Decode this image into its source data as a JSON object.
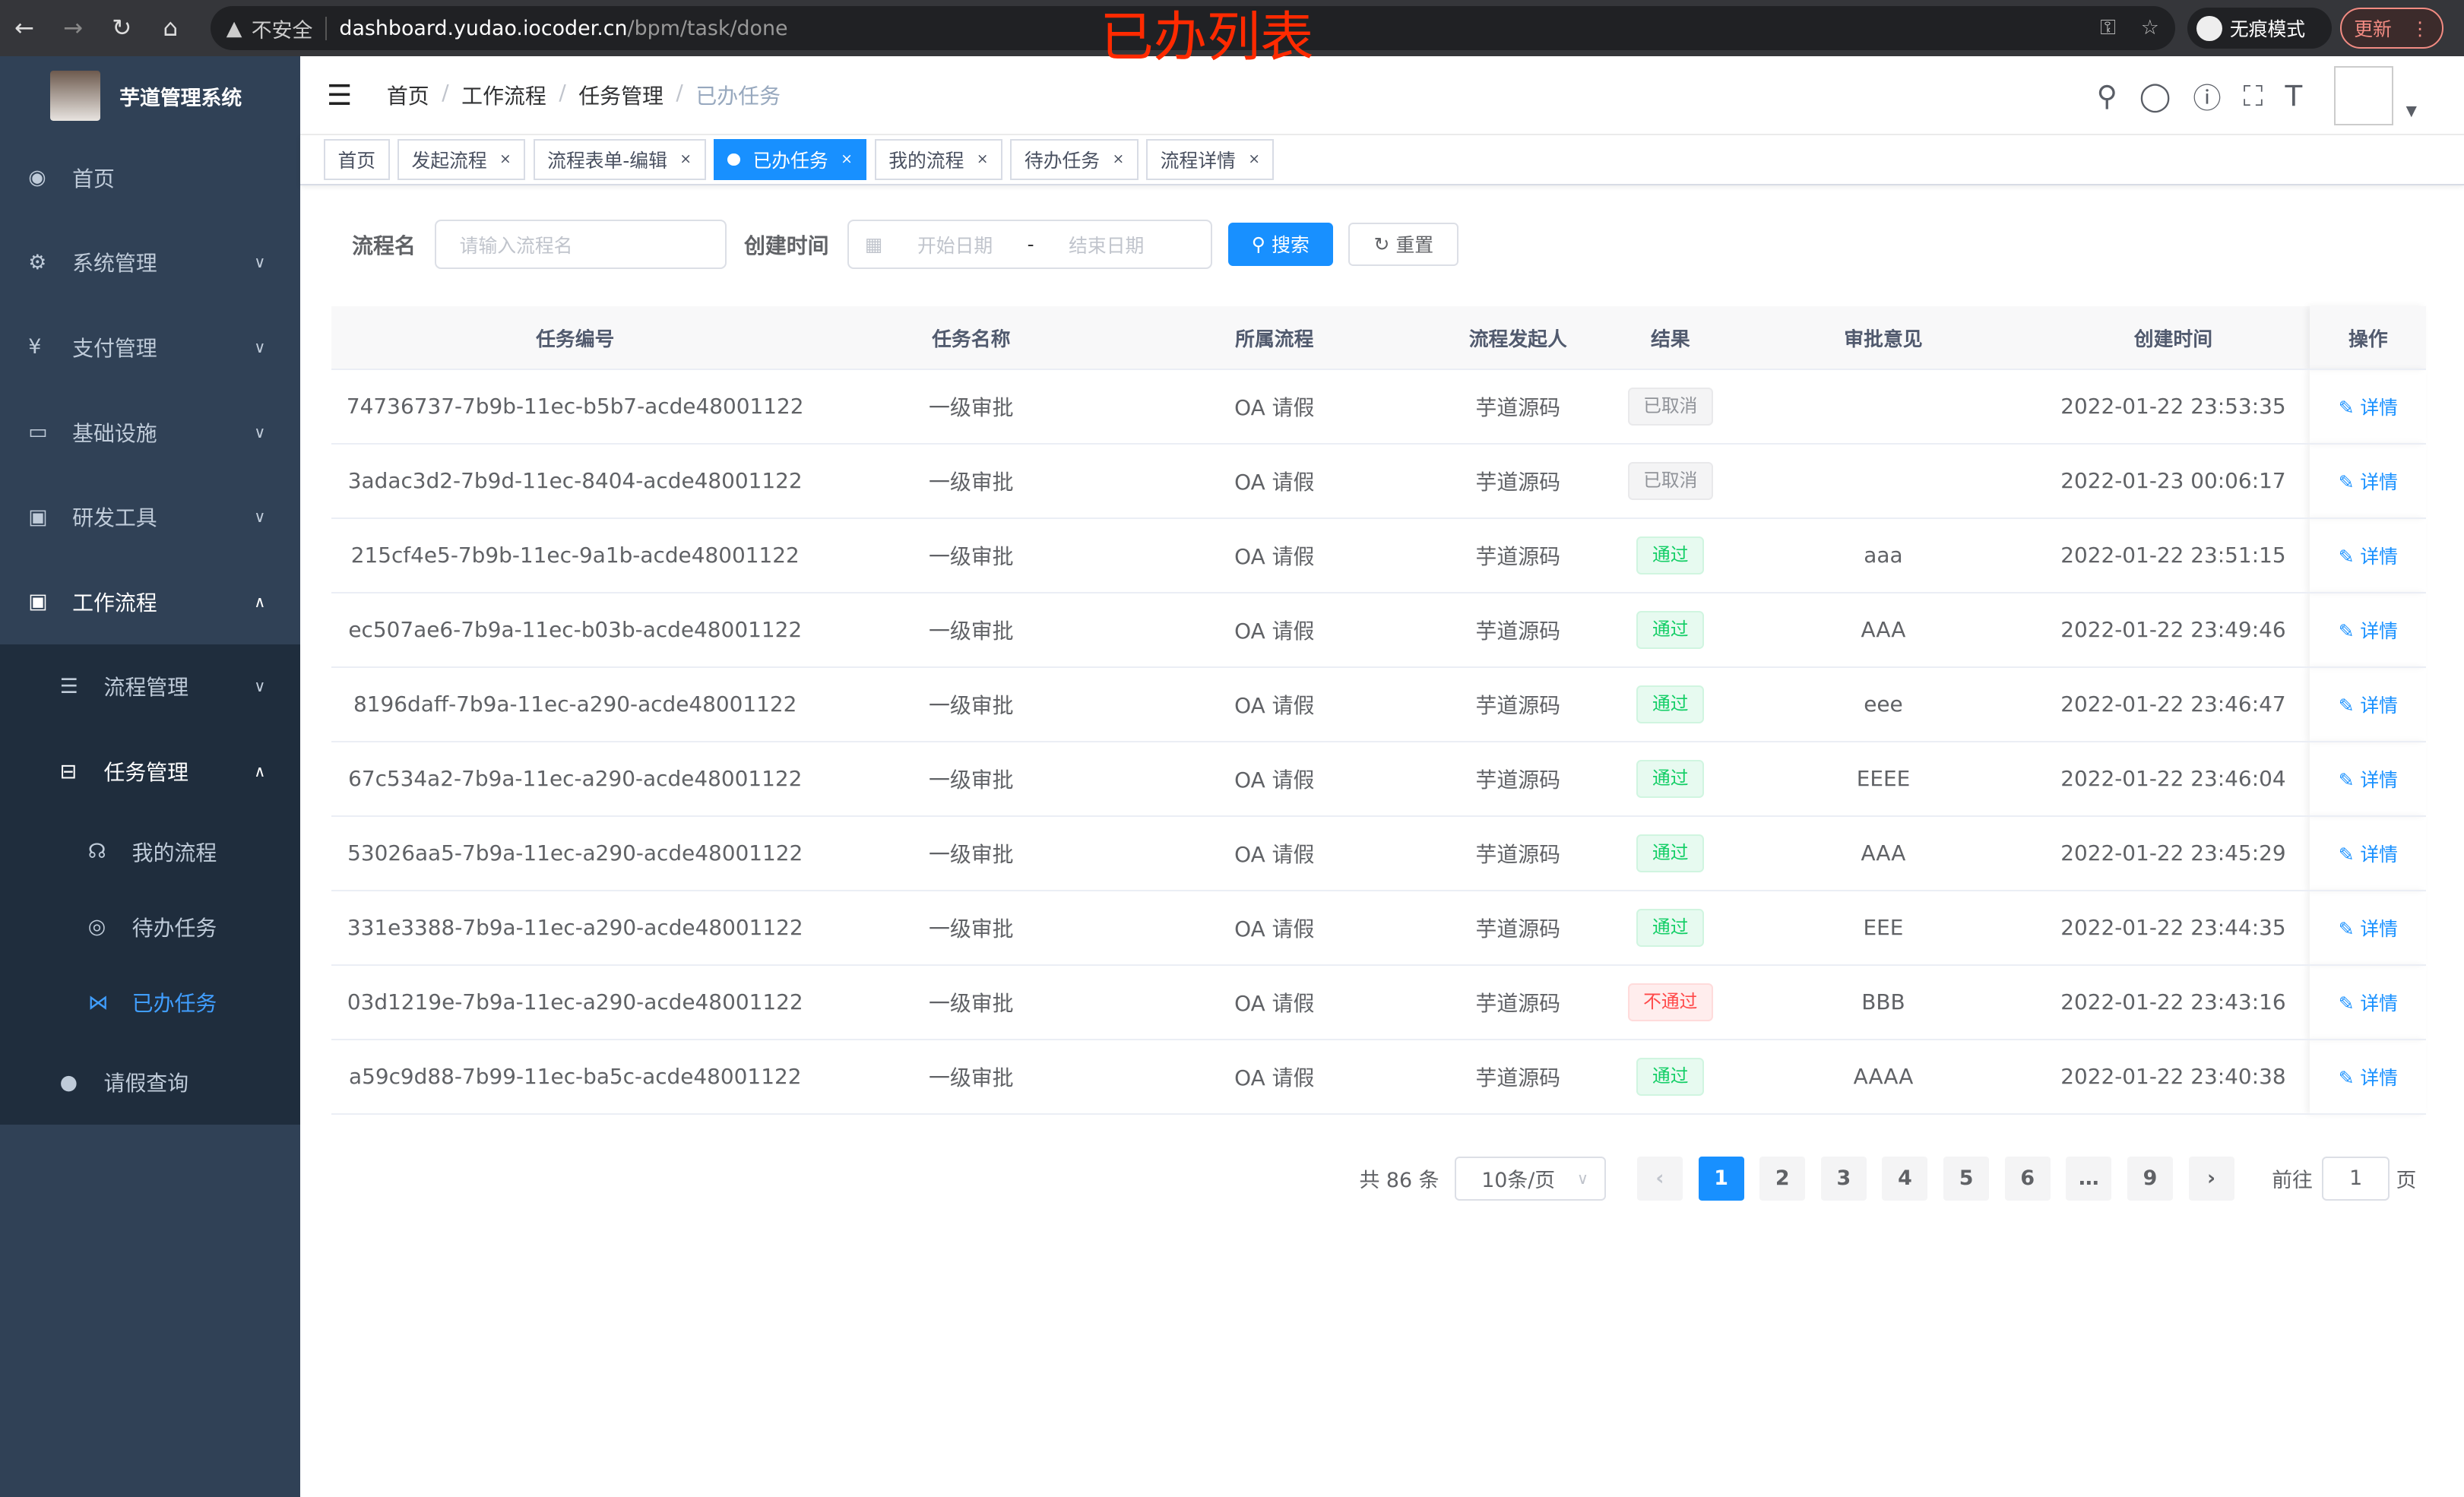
{
  "browser": {
    "security": "不安全",
    "url_host": "dashboard.yudao.iocoder.cn",
    "url_path": "/bpm/task/done",
    "incognito": "无痕模式",
    "update": "更新"
  },
  "annotation": "已办列表",
  "sidebar": {
    "title": "芋道管理系统",
    "items": [
      {
        "label": "首页",
        "icon": "dashboard-icon"
      },
      {
        "label": "系统管理",
        "icon": "gear-icon"
      },
      {
        "label": "支付管理",
        "icon": "yen-icon"
      },
      {
        "label": "基础设施",
        "icon": "monitor-icon"
      },
      {
        "label": "研发工具",
        "icon": "toolbox-icon"
      },
      {
        "label": "工作流程",
        "icon": "toolbox-icon"
      }
    ],
    "workflow": [
      {
        "label": "流程管理"
      },
      {
        "label": "任务管理"
      },
      {
        "label": "请假查询"
      }
    ],
    "task": [
      {
        "label": "我的流程"
      },
      {
        "label": "待办任务"
      },
      {
        "label": "已办任务"
      }
    ]
  },
  "breadcrumb": [
    "首页",
    "工作流程",
    "任务管理",
    "已办任务"
  ],
  "tags": [
    "首页",
    "发起流程",
    "流程表单-编辑",
    "已办任务",
    "我的流程",
    "待办任务",
    "流程详情"
  ],
  "search": {
    "name_label": "流程名",
    "name_placeholder": "请输入流程名",
    "time_label": "创建时间",
    "start_placeholder": "开始日期",
    "sep": "-",
    "end_placeholder": "结束日期",
    "search": "搜索",
    "reset": "重置"
  },
  "table": {
    "columns": [
      "任务编号",
      "任务名称",
      "所属流程",
      "流程发起人",
      "结果",
      "审批意见",
      "创建时间",
      "操作"
    ],
    "action": "详情",
    "rows": [
      {
        "id": "74736737-7b9b-11ec-b5b7-acde48001122",
        "name": "一级审批",
        "process": "OA 请假",
        "starter": "芋道源码",
        "result": "已取消",
        "status": "cancel",
        "comment": "",
        "time": "2022-01-22 23:53:35"
      },
      {
        "id": "3adac3d2-7b9d-11ec-8404-acde48001122",
        "name": "一级审批",
        "process": "OA 请假",
        "starter": "芋道源码",
        "result": "已取消",
        "status": "cancel",
        "comment": "",
        "time": "2022-01-23 00:06:17"
      },
      {
        "id": "215cf4e5-7b9b-11ec-9a1b-acde48001122",
        "name": "一级审批",
        "process": "OA 请假",
        "starter": "芋道源码",
        "result": "通过",
        "status": "pass",
        "comment": "aaa",
        "time": "2022-01-22 23:51:15"
      },
      {
        "id": "ec507ae6-7b9a-11ec-b03b-acde48001122",
        "name": "一级审批",
        "process": "OA 请假",
        "starter": "芋道源码",
        "result": "通过",
        "status": "pass",
        "comment": "AAA",
        "time": "2022-01-22 23:49:46"
      },
      {
        "id": "8196daff-7b9a-11ec-a290-acde48001122",
        "name": "一级审批",
        "process": "OA 请假",
        "starter": "芋道源码",
        "result": "通过",
        "status": "pass",
        "comment": "eee",
        "time": "2022-01-22 23:46:47"
      },
      {
        "id": "67c534a2-7b9a-11ec-a290-acde48001122",
        "name": "一级审批",
        "process": "OA 请假",
        "starter": "芋道源码",
        "result": "通过",
        "status": "pass",
        "comment": "EEEE",
        "time": "2022-01-22 23:46:04"
      },
      {
        "id": "53026aa5-7b9a-11ec-a290-acde48001122",
        "name": "一级审批",
        "process": "OA 请假",
        "starter": "芋道源码",
        "result": "通过",
        "status": "pass",
        "comment": "AAA",
        "time": "2022-01-22 23:45:29"
      },
      {
        "id": "331e3388-7b9a-11ec-a290-acde48001122",
        "name": "一级审批",
        "process": "OA 请假",
        "starter": "芋道源码",
        "result": "通过",
        "status": "pass",
        "comment": "EEE",
        "time": "2022-01-22 23:44:35"
      },
      {
        "id": "03d1219e-7b9a-11ec-a290-acde48001122",
        "name": "一级审批",
        "process": "OA 请假",
        "starter": "芋道源码",
        "result": "不通过",
        "status": "fail",
        "comment": "BBB",
        "time": "2022-01-22 23:43:16"
      },
      {
        "id": "a59c9d88-7b99-11ec-ba5c-acde48001122",
        "name": "一级审批",
        "process": "OA 请假",
        "starter": "芋道源码",
        "result": "通过",
        "status": "pass",
        "comment": "AAAA",
        "time": "2022-01-22 23:40:38"
      }
    ]
  },
  "pagination": {
    "total": "共 86 条",
    "page_size": "10条/页",
    "pages": [
      "1",
      "2",
      "3",
      "4",
      "5",
      "6",
      "…",
      "9"
    ],
    "current": "1",
    "goto_label": "前往",
    "goto_value": "1",
    "page_suffix": "页"
  },
  "colors": {
    "accent": "#1890ff",
    "sidebar": "#304156",
    "pass": "#13ce66",
    "fail": "#ff4949"
  }
}
